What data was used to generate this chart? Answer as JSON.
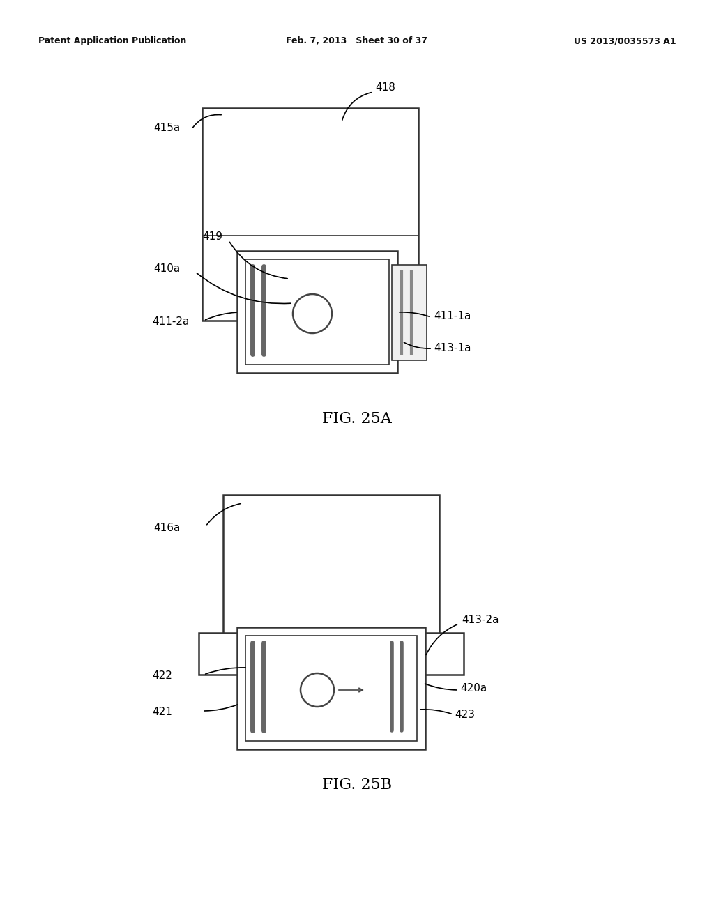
{
  "bg_color": "#ffffff",
  "header_left": "Patent Application Publication",
  "header_center": "Feb. 7, 2013   Sheet 30 of 37",
  "header_right": "US 2013/0035573 A1",
  "fig25a_label": "FIG. 25A",
  "fig25b_label": "FIG. 25B",
  "line_color": "#333333",
  "font_size_label": 11,
  "font_size_caption": 16,
  "font_size_header": 9
}
